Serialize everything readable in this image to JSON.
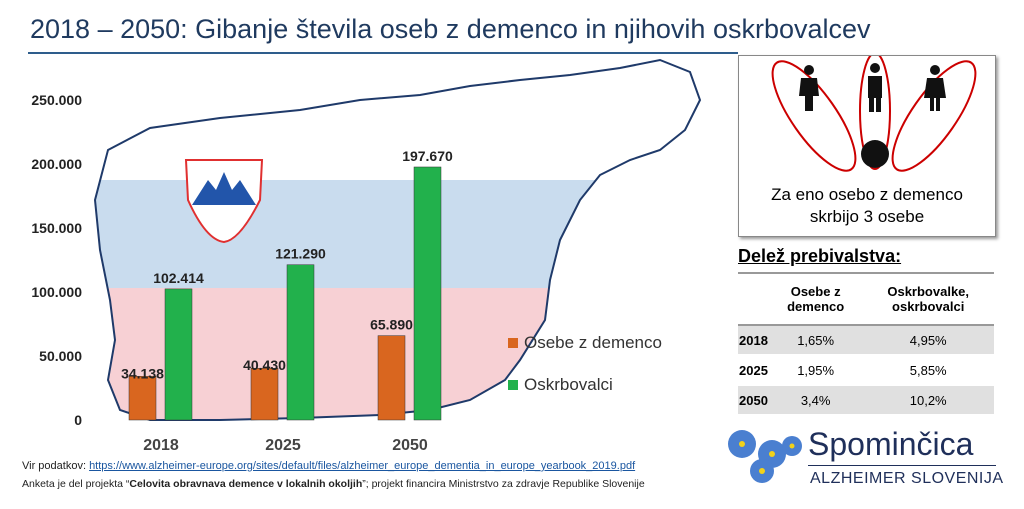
{
  "title": "2018 – 2050: Gibanje števila oseb z demenco in njihovih oskrbovalcev",
  "chart_data": {
    "type": "bar",
    "categories": [
      "2018",
      "2025",
      "2050"
    ],
    "series": [
      {
        "name": "Osebe z demenco",
        "color": "#d9661f",
        "values": [
          34138,
          40430,
          65890
        ],
        "labels": [
          "34.138",
          "40.430",
          "65.890"
        ]
      },
      {
        "name": "Oskrbovalci",
        "color": "#22b14c",
        "values": [
          102414,
          121290,
          197670
        ],
        "labels": [
          "102.414",
          "121.290",
          "197.670"
        ]
      }
    ],
    "ylim": [
      0,
      250000
    ],
    "yticks": [
      0,
      50000,
      100000,
      150000,
      200000,
      250000
    ],
    "ytick_labels": [
      "0",
      "50.000",
      "100.000",
      "150.000",
      "200.000",
      "250.000"
    ],
    "legend_position": "right"
  },
  "infobox": {
    "line1": "Za eno osebo z demenco",
    "line2": "skrbijo 3 osebe"
  },
  "share": {
    "title": "Delež prebivalstva:",
    "headers": [
      "",
      "Osebe z demenco",
      "Oskrbovalke, oskrbovalci"
    ],
    "rows": [
      [
        "2018",
        "1,65%",
        "4,95%"
      ],
      [
        "2025",
        "1,95%",
        "5,85%"
      ],
      [
        "2050",
        "3,4%",
        "10,2%"
      ]
    ]
  },
  "source": {
    "label": "Vir podatkov: ",
    "url": "https://www.alzheimer-europe.org/sites/default/files/alzheimer_europe_dementia_in_europe_yearbook_2019.pdf"
  },
  "project": {
    "pre": "Anketa je del projekta “",
    "bold": "Celovita obravnava demence v lokalnih okoljih",
    "post": "”;  projekt financira Ministrstvo za zdravje Republike Slovenije"
  },
  "logo": {
    "name": "Spominčica",
    "sub": "ALZHEIMER SLOVENIJA"
  }
}
